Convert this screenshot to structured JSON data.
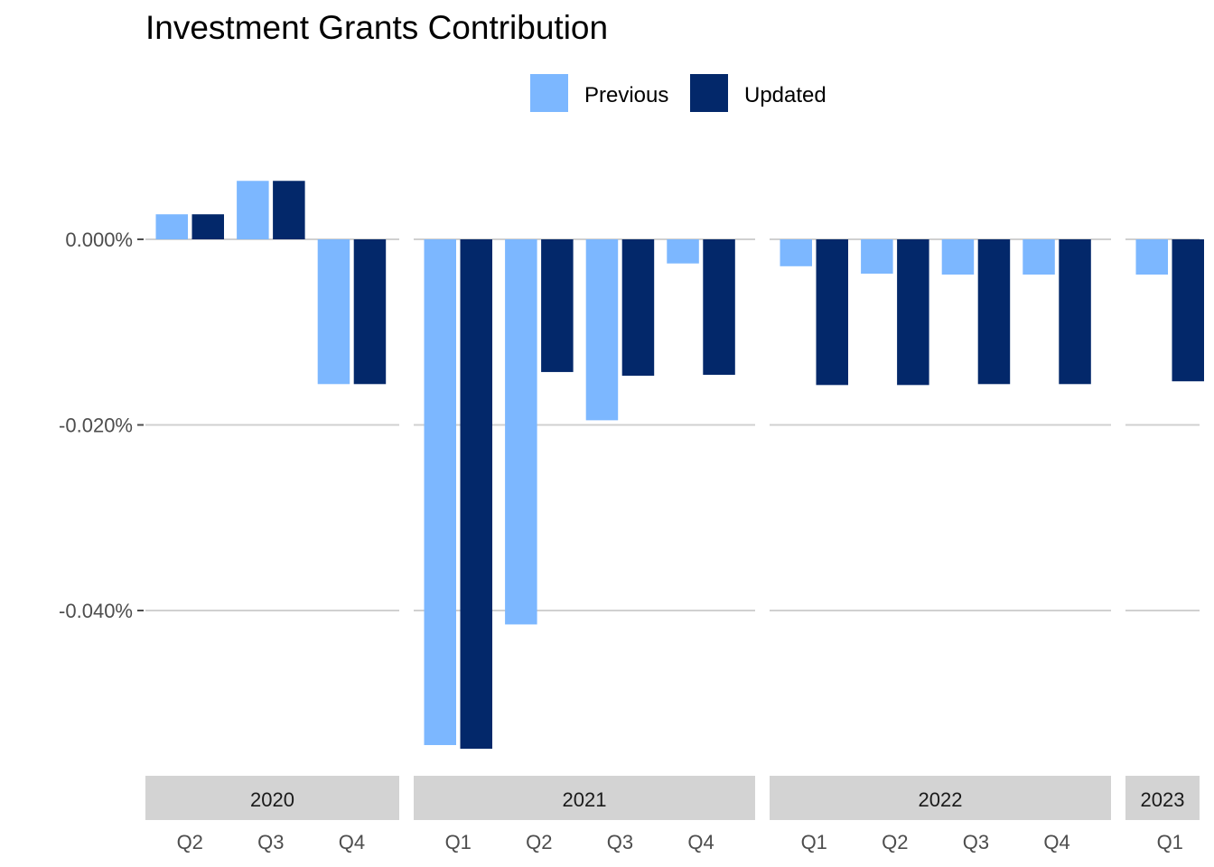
{
  "chart_data": {
    "type": "bar",
    "title": "Investment Grants Contribution",
    "xlabel": "",
    "ylabel": "",
    "ylim": [
      -0.0555,
      0.0085
    ],
    "y_ticks": [
      0.0,
      -0.02,
      -0.04
    ],
    "y_tick_labels": [
      "0.000%",
      "-0.020%",
      "-0.040%"
    ],
    "grid": true,
    "legend_position": "top",
    "series": [
      {
        "name": "Previous",
        "color": "#7cb7ff"
      },
      {
        "name": "Updated",
        "color": "#03286a"
      }
    ],
    "facets": [
      {
        "label": "2020",
        "quarters": [
          {
            "label": "Q2",
            "values": [
              0.0027,
              0.0027
            ]
          },
          {
            "label": "Q3",
            "values": [
              0.0063,
              0.0063
            ]
          },
          {
            "label": "Q4",
            "values": [
              -0.0156,
              -0.0156
            ]
          }
        ]
      },
      {
        "label": "2021",
        "quarters": [
          {
            "label": "Q1",
            "values": [
              -0.0545,
              -0.0549
            ]
          },
          {
            "label": "Q2",
            "values": [
              -0.0415,
              -0.0143
            ]
          },
          {
            "label": "Q3",
            "values": [
              -0.0195,
              -0.0147
            ]
          },
          {
            "label": "Q4",
            "values": [
              -0.0026,
              -0.0146
            ]
          }
        ]
      },
      {
        "label": "2022",
        "quarters": [
          {
            "label": "Q1",
            "values": [
              -0.0029,
              -0.0157
            ]
          },
          {
            "label": "Q2",
            "values": [
              -0.0037,
              -0.0157
            ]
          },
          {
            "label": "Q3",
            "values": [
              -0.0038,
              -0.0156
            ]
          },
          {
            "label": "Q4",
            "values": [
              -0.0038,
              -0.0156
            ]
          }
        ]
      },
      {
        "label": "2023",
        "quarters": [
          {
            "label": "Q1",
            "values": [
              -0.0038,
              -0.0153
            ]
          }
        ]
      }
    ]
  }
}
